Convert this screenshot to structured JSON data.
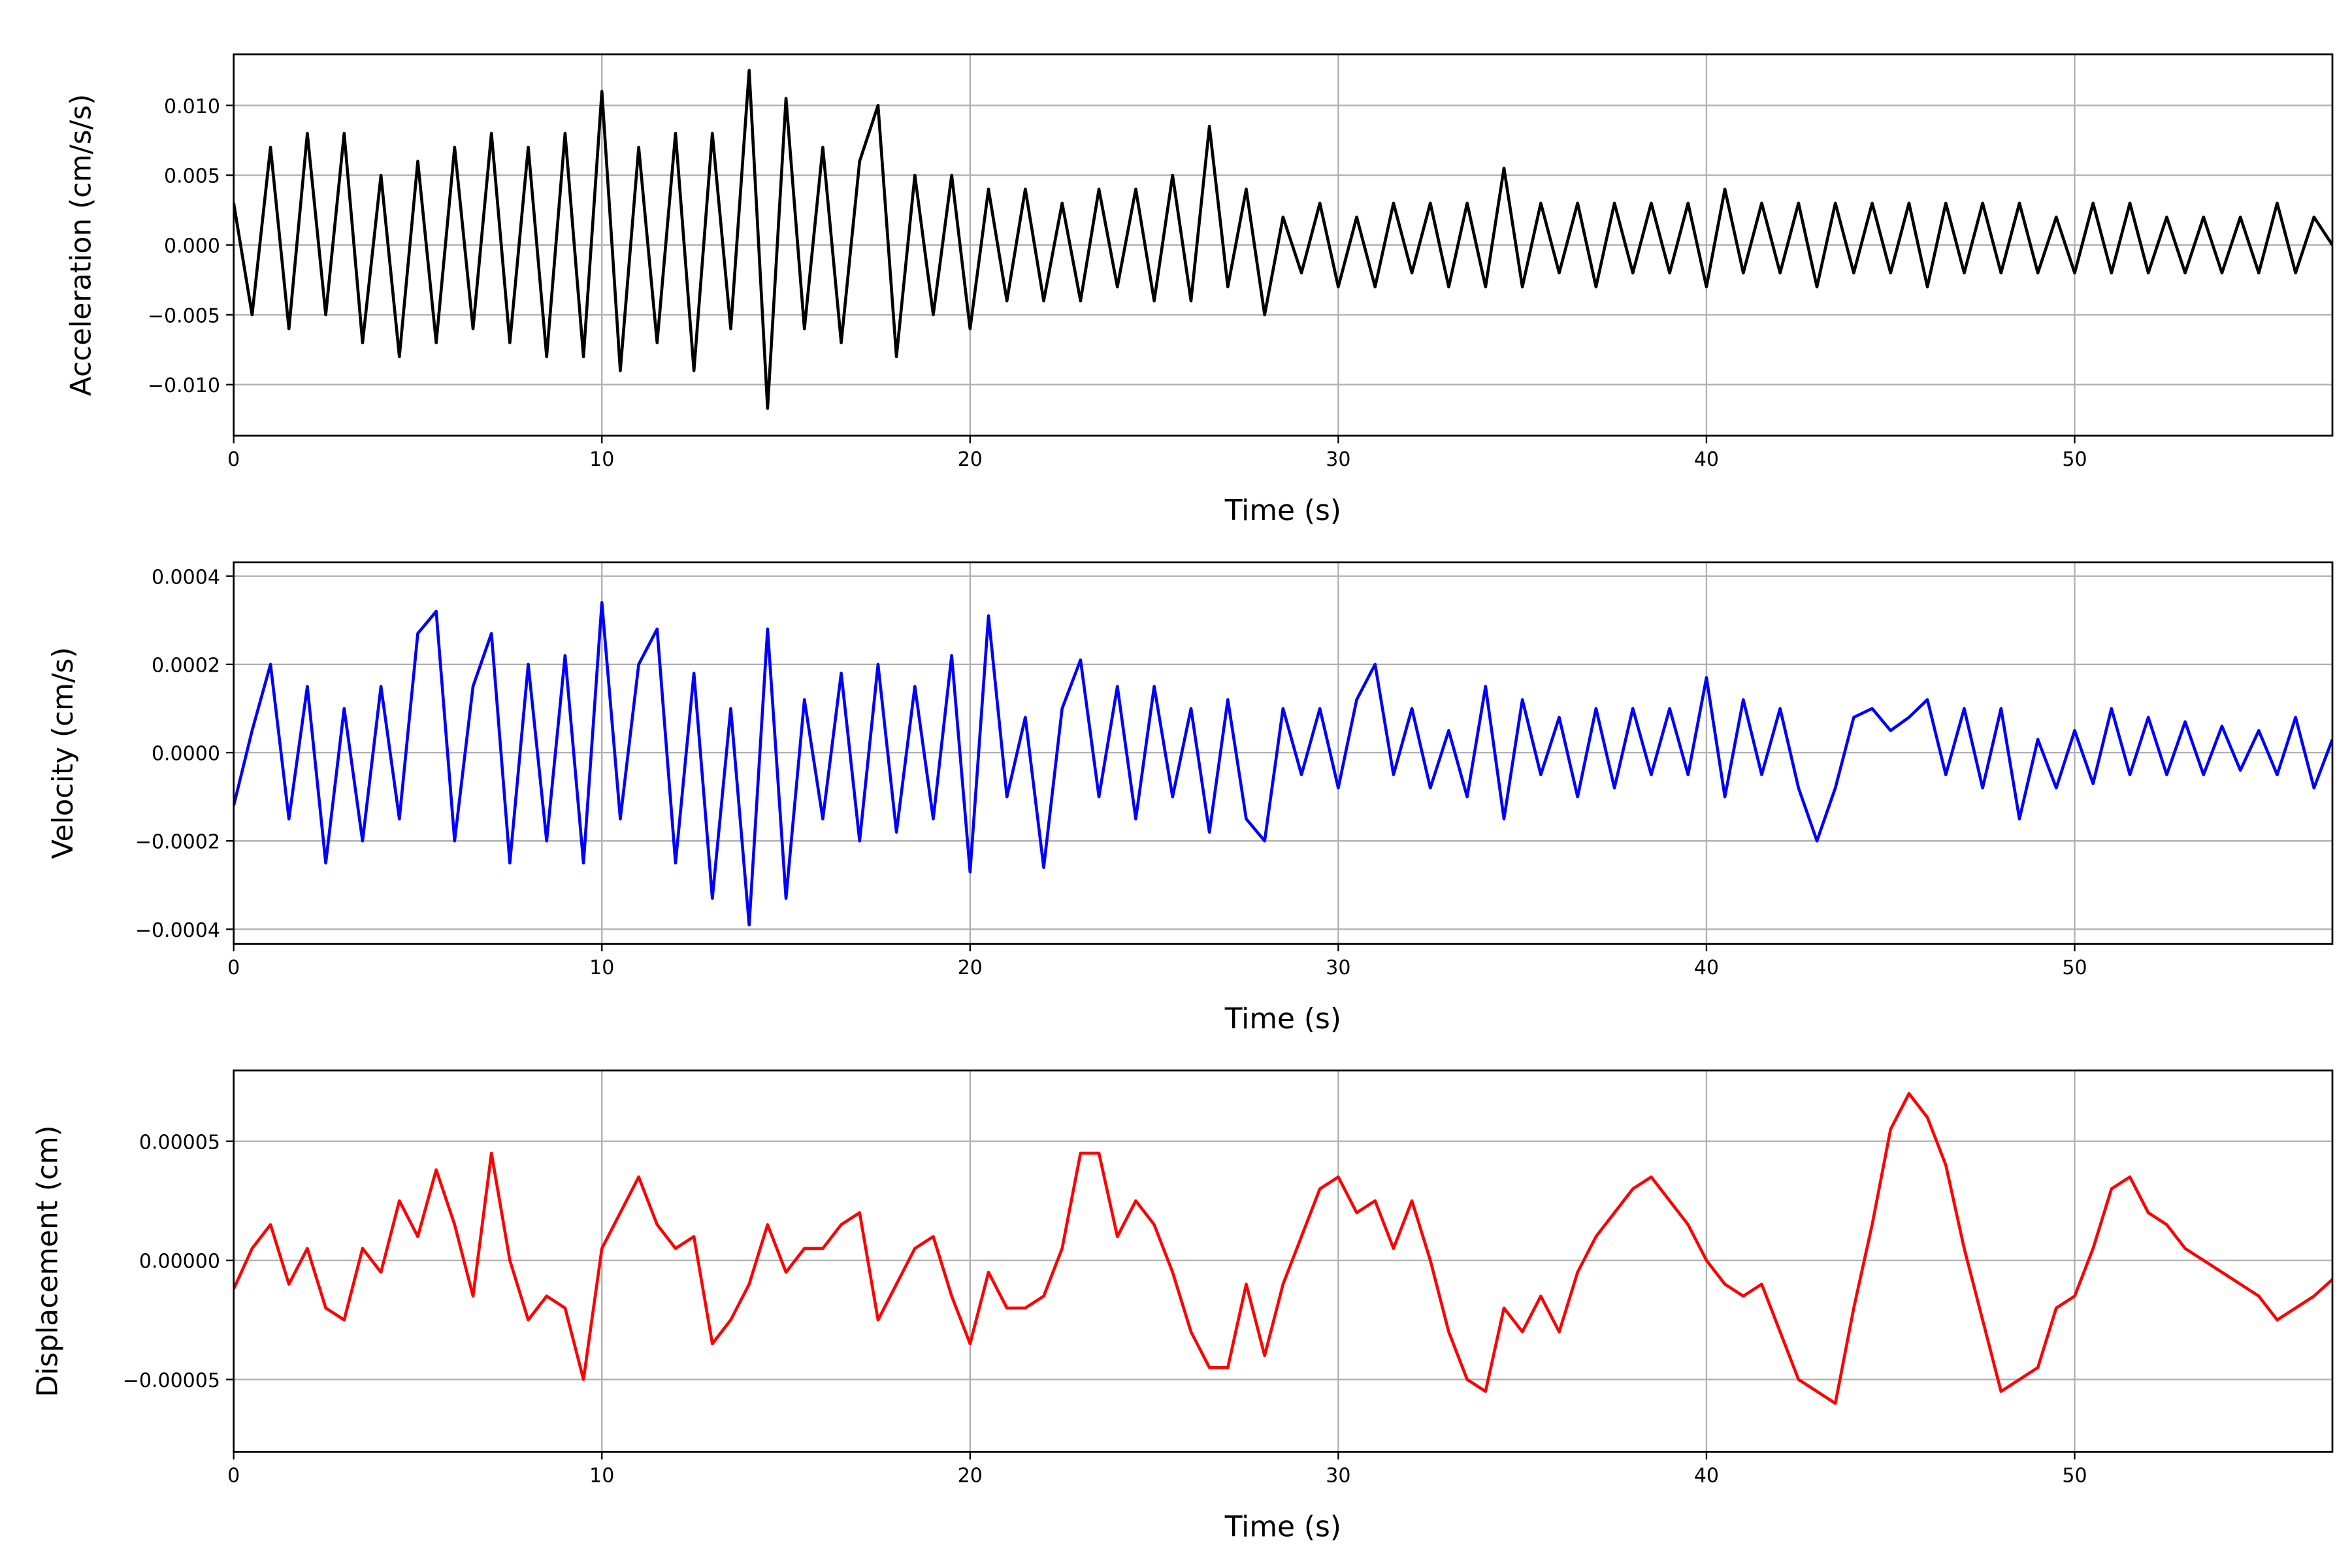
{
  "chart_data": [
    {
      "type": "line",
      "xlabel": "Time (s)",
      "ylabel": "Acceleration (cm/s/s)",
      "color": "#000000",
      "grid": true,
      "xlim": [
        0,
        57
      ],
      "xticks": [
        0,
        10,
        20,
        30,
        40,
        50
      ],
      "ylim": [
        -0.01366,
        0.01366
      ],
      "yticks": [
        {
          "value": -0.01,
          "label": "−0.010"
        },
        {
          "value": -0.005,
          "label": "−0.005"
        },
        {
          "value": 0,
          "label": "0.000"
        },
        {
          "value": 0.005,
          "label": "0.005"
        },
        {
          "value": 0.01,
          "label": "0.010"
        }
      ],
      "x": [
        0,
        0.5,
        1,
        1.5,
        2,
        2.5,
        3,
        3.5,
        4,
        4.5,
        5,
        5.5,
        6,
        6.5,
        7,
        7.5,
        8,
        8.5,
        9,
        9.5,
        10,
        10.5,
        11,
        11.5,
        12,
        12.5,
        13,
        13.5,
        14,
        14.5,
        15,
        15.5,
        16,
        16.5,
        17,
        17.5,
        18,
        18.5,
        19,
        19.5,
        20,
        20.5,
        21,
        21.5,
        22,
        22.5,
        23,
        23.5,
        24,
        24.5,
        25,
        25.5,
        26,
        26.5,
        27,
        27.5,
        28,
        28.5,
        29,
        29.5,
        30,
        30.5,
        31,
        31.5,
        32,
        32.5,
        33,
        33.5,
        34,
        34.5,
        35,
        35.5,
        36,
        36.5,
        37,
        37.5,
        38,
        38.5,
        39,
        39.5,
        40,
        40.5,
        41,
        41.5,
        42,
        42.5,
        43,
        43.5,
        44,
        44.5,
        45,
        45.5,
        46,
        46.5,
        47,
        47.5,
        48,
        48.5,
        49,
        49.5,
        50,
        50.5,
        51,
        51.5,
        52,
        52.5,
        53,
        53.5,
        54,
        54.5,
        55,
        55.5,
        56,
        56.5,
        57
      ],
      "values": [
        0.003,
        -0.005,
        0.007,
        -0.006,
        0.008,
        -0.005,
        0.008,
        -0.007,
        0.005,
        -0.008,
        0.006,
        -0.007,
        0.007,
        -0.006,
        0.008,
        -0.007,
        0.007,
        -0.008,
        0.008,
        -0.008,
        0.011,
        -0.009,
        0.007,
        -0.007,
        0.008,
        -0.009,
        0.008,
        -0.006,
        0.0125,
        -0.0117,
        0.0105,
        -0.006,
        0.007,
        -0.007,
        0.006,
        0.01,
        -0.008,
        0.005,
        -0.005,
        0.005,
        -0.006,
        0.004,
        -0.004,
        0.004,
        -0.004,
        0.003,
        -0.004,
        0.004,
        -0.003,
        0.004,
        -0.004,
        0.005,
        -0.004,
        0.0085,
        -0.003,
        0.004,
        -0.005,
        0.002,
        -0.002,
        0.003,
        -0.003,
        0.002,
        -0.003,
        0.003,
        -0.002,
        0.003,
        -0.003,
        0.003,
        -0.003,
        0.0055,
        -0.003,
        0.003,
        -0.002,
        0.003,
        -0.003,
        0.003,
        -0.002,
        0.003,
        -0.002,
        0.003,
        -0.003,
        0.004,
        -0.002,
        0.003,
        -0.002,
        0.003,
        -0.003,
        0.003,
        -0.002,
        0.003,
        -0.002,
        0.003,
        -0.003,
        0.003,
        -0.002,
        0.003,
        -0.002,
        0.003,
        -0.002,
        0.002,
        -0.002,
        0.003,
        -0.002,
        0.003,
        -0.002,
        0.002,
        -0.002,
        0.002,
        -0.002,
        0.002,
        -0.002,
        0.003,
        -0.002,
        0.002,
        0
      ]
    },
    {
      "type": "line",
      "xlabel": "Time (s)",
      "ylabel": "Velocity (cm/s)",
      "color": "#0000ff",
      "grid": true,
      "xlim": [
        0,
        57
      ],
      "xticks": [
        0,
        10,
        20,
        30,
        40,
        50
      ],
      "ylim": [
        -0.000433,
        0.000431
      ],
      "yticks": [
        {
          "value": -0.0004,
          "label": "−0.0004"
        },
        {
          "value": -0.0002,
          "label": "−0.0002"
        },
        {
          "value": 0,
          "label": "0.0000"
        },
        {
          "value": 0.0002,
          "label": "0.0002"
        },
        {
          "value": 0.0004,
          "label": "0.0004"
        }
      ],
      "x": [
        0,
        0.5,
        1,
        1.5,
        2,
        2.5,
        3,
        3.5,
        4,
        4.5,
        5,
        5.5,
        6,
        6.5,
        7,
        7.5,
        8,
        8.5,
        9,
        9.5,
        10,
        10.5,
        11,
        11.5,
        12,
        12.5,
        13,
        13.5,
        14,
        14.5,
        15,
        15.5,
        16,
        16.5,
        17,
        17.5,
        18,
        18.5,
        19,
        19.5,
        20,
        20.5,
        21,
        21.5,
        22,
        22.5,
        23,
        23.5,
        24,
        24.5,
        25,
        25.5,
        26,
        26.5,
        27,
        27.5,
        28,
        28.5,
        29,
        29.5,
        30,
        30.5,
        31,
        31.5,
        32,
        32.5,
        33,
        33.5,
        34,
        34.5,
        35,
        35.5,
        36,
        36.5,
        37,
        37.5,
        38,
        38.5,
        39,
        39.5,
        40,
        40.5,
        41,
        41.5,
        42,
        42.5,
        43,
        43.5,
        44,
        44.5,
        45,
        45.5,
        46,
        46.5,
        47,
        47.5,
        48,
        48.5,
        49,
        49.5,
        50,
        50.5,
        51,
        51.5,
        52,
        52.5,
        53,
        53.5,
        54,
        54.5,
        55,
        55.5,
        56,
        56.5,
        57
      ],
      "values": [
        -0.00012,
        5e-05,
        0.0002,
        -0.00015,
        0.00015,
        -0.00025,
        0.0001,
        -0.0002,
        0.00015,
        -0.00015,
        0.00027,
        0.00032,
        -0.0002,
        0.00015,
        0.00027,
        -0.00025,
        0.0002,
        -0.0002,
        0.00022,
        -0.00025,
        0.00034,
        -0.00015,
        0.0002,
        0.00028,
        -0.00025,
        0.00018,
        -0.00033,
        0.0001,
        -0.00039,
        0.00028,
        -0.00033,
        0.00012,
        -0.00015,
        0.00018,
        -0.0002,
        0.0002,
        -0.00018,
        0.00015,
        -0.00015,
        0.00022,
        -0.00027,
        0.00031,
        -0.0001,
        8e-05,
        -0.00026,
        0.0001,
        0.00021,
        -0.0001,
        0.00015,
        -0.00015,
        0.00015,
        -0.0001,
        0.0001,
        -0.00018,
        0.00012,
        -0.00015,
        -0.0002,
        0.0001,
        -5e-05,
        0.0001,
        -8e-05,
        0.00012,
        0.0002,
        -5e-05,
        0.0001,
        -8e-05,
        5e-05,
        -0.0001,
        0.00015,
        -0.00015,
        0.00012,
        -5e-05,
        8e-05,
        -0.0001,
        0.0001,
        -8e-05,
        0.0001,
        -5e-05,
        0.0001,
        -5e-05,
        0.00017,
        -0.0001,
        0.00012,
        -5e-05,
        0.0001,
        -8e-05,
        -0.0002,
        -8e-05,
        8e-05,
        0.0001,
        5e-05,
        8e-05,
        0.00012,
        -5e-05,
        0.0001,
        -8e-05,
        0.0001,
        -0.00015,
        3e-05,
        -8e-05,
        5e-05,
        -7e-05,
        0.0001,
        -5e-05,
        8e-05,
        -5e-05,
        7e-05,
        -5e-05,
        6e-05,
        -4e-05,
        5e-05,
        -5e-05,
        8e-05,
        -8e-05,
        3e-05
      ]
    },
    {
      "type": "line",
      "xlabel": "Time (s)",
      "ylabel": "Displacement (cm)",
      "color": "#ff0000",
      "grid": true,
      "xlim": [
        0,
        57
      ],
      "xticks": [
        0,
        10,
        20,
        30,
        40,
        50
      ],
      "ylim": [
        -8.04e-05,
        7.97e-05
      ],
      "yticks": [
        {
          "value": -5e-05,
          "label": "−0.00005"
        },
        {
          "value": 0,
          "label": "0.00000"
        },
        {
          "value": 5e-05,
          "label": "0.00005"
        }
      ],
      "x": [
        0,
        0.5,
        1,
        1.5,
        2,
        2.5,
        3,
        3.5,
        4,
        4.5,
        5,
        5.5,
        6,
        6.5,
        7,
        7.5,
        8,
        8.5,
        9,
        9.5,
        10,
        10.5,
        11,
        11.5,
        12,
        12.5,
        13,
        13.5,
        14,
        14.5,
        15,
        15.5,
        16,
        16.5,
        17,
        17.5,
        18,
        18.5,
        19,
        19.5,
        20,
        20.5,
        21,
        21.5,
        22,
        22.5,
        23,
        23.5,
        24,
        24.5,
        25,
        25.5,
        26,
        26.5,
        27,
        27.5,
        28,
        28.5,
        29,
        29.5,
        30,
        30.5,
        31,
        31.5,
        32,
        32.5,
        33,
        33.5,
        34,
        34.5,
        35,
        35.5,
        36,
        36.5,
        37,
        37.5,
        38,
        38.5,
        39,
        39.5,
        40,
        40.5,
        41,
        41.5,
        42,
        42.5,
        43,
        43.5,
        44,
        44.5,
        45,
        45.5,
        46,
        46.5,
        47,
        47.5,
        48,
        48.5,
        49,
        49.5,
        50,
        50.5,
        51,
        51.5,
        52,
        52.5,
        53,
        53.5,
        54,
        54.5,
        55,
        55.5,
        56,
        56.5,
        57
      ],
      "values": [
        -1.2e-05,
        5e-06,
        1.5e-05,
        -1e-05,
        5e-06,
        -2e-05,
        -2.5e-05,
        5e-06,
        -5e-06,
        2.5e-05,
        1e-05,
        3.8e-05,
        1.5e-05,
        -1.5e-05,
        4.5e-05,
        0,
        -2.5e-05,
        -1.5e-05,
        -2e-05,
        -5e-05,
        5e-06,
        2e-05,
        3.5e-05,
        1.5e-05,
        5e-06,
        1e-05,
        -3.5e-05,
        -2.5e-05,
        -1e-05,
        1.5e-05,
        -5e-06,
        5e-06,
        5e-06,
        1.5e-05,
        2e-05,
        -2.5e-05,
        -1e-05,
        5e-06,
        1e-05,
        -1.5e-05,
        -3.5e-05,
        -5e-06,
        -2e-05,
        -2e-05,
        -1.5e-05,
        5e-06,
        4.5e-05,
        4.5e-05,
        1e-05,
        2.5e-05,
        1.5e-05,
        -5e-06,
        -3e-05,
        -4.5e-05,
        -4.5e-05,
        -1e-05,
        -4e-05,
        -1e-05,
        1e-05,
        3e-05,
        3.5e-05,
        2e-05,
        2.5e-05,
        5e-06,
        2.5e-05,
        0,
        -3e-05,
        -5e-05,
        -5.5e-05,
        -2e-05,
        -3e-05,
        -1.5e-05,
        -3e-05,
        -5e-06,
        1e-05,
        2e-05,
        3e-05,
        3.5e-05,
        2.5e-05,
        1.5e-05,
        0,
        -1e-05,
        -1.5e-05,
        -1e-05,
        -3e-05,
        -5e-05,
        -5.5e-05,
        -6e-05,
        -2e-05,
        1.5e-05,
        5.5e-05,
        7e-05,
        6e-05,
        4e-05,
        5e-06,
        -2.5e-05,
        -5.5e-05,
        -5e-05,
        -4.5e-05,
        -2e-05,
        -1.5e-05,
        5e-06,
        3e-05,
        3.5e-05,
        2e-05,
        1.5e-05,
        5e-06,
        0,
        -5e-06,
        -1e-05,
        -1.5e-05,
        -2.5e-05,
        -2e-05,
        -1.5e-05,
        -8e-06
      ]
    }
  ]
}
